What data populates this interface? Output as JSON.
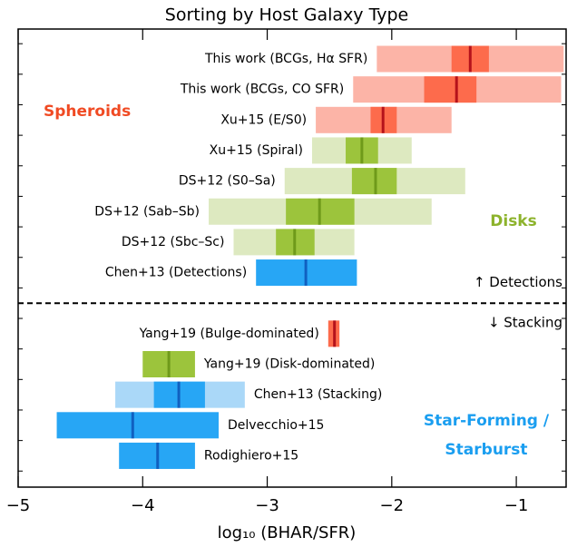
{
  "chart_data": {
    "type": "range",
    "title": "Sorting by Host Galaxy Type",
    "x_label": "log₁₀ (BHAR/SFR)",
    "xlim": [
      -5,
      -0.6
    ],
    "xticks": [
      {
        "value": -5,
        "label": "−5"
      },
      {
        "value": -4,
        "label": "−4"
      },
      {
        "value": -3,
        "label": "−3"
      },
      {
        "value": -2,
        "label": "−2"
      },
      {
        "value": -1,
        "label": "−1"
      }
    ],
    "panels": [
      {
        "annotation": "↑ Detections",
        "rows": [
          {
            "label": "This work (BCGs, Hα SFR)",
            "range": [
              -2.12,
              -0.62
            ],
            "inner": [
              -1.52,
              -1.22
            ],
            "median": -1.37,
            "light": "#fcb4a7",
            "dark": "#fd6b4c",
            "line": "#b5121b",
            "label_side": "left"
          },
          {
            "label": "This work (BCGs, CO SFR)",
            "range": [
              -2.31,
              -0.64
            ],
            "inner": [
              -1.74,
              -1.32
            ],
            "median": -1.48,
            "light": "#fcb4a7",
            "dark": "#fd6b4c",
            "line": "#b5121b",
            "label_side": "left"
          },
          {
            "label": "Xu+15 (E/S0)",
            "range": [
              -2.61,
              -1.52
            ],
            "inner": [
              -2.17,
              -1.96
            ],
            "median": -2.07,
            "light": "#fcb4a7",
            "dark": "#fd6b4c",
            "line": "#b5121b",
            "label_side": "left"
          },
          {
            "label": "Xu+15 (Spiral)",
            "range": [
              -2.64,
              -1.84
            ],
            "inner": [
              -2.37,
              -2.11
            ],
            "median": -2.24,
            "light": "#dde9c0",
            "dark": "#9cc43c",
            "line": "#6f9a1a",
            "label_side": "left"
          },
          {
            "label": "DS+12 (S0–Sa)",
            "range": [
              -2.86,
              -1.41
            ],
            "inner": [
              -2.32,
              -1.96
            ],
            "median": -2.13,
            "light": "#dde9c0",
            "dark": "#9cc43c",
            "line": "#6f9a1a",
            "label_side": "left"
          },
          {
            "label": "DS+12 (Sab–Sb)",
            "range": [
              -3.47,
              -1.68
            ],
            "inner": [
              -2.85,
              -2.3
            ],
            "median": -2.58,
            "light": "#dde9c0",
            "dark": "#9cc43c",
            "line": "#6f9a1a",
            "label_side": "left"
          },
          {
            "label": "DS+12 (Sbc–Sc)",
            "range": [
              -3.27,
              -2.3
            ],
            "inner": [
              -2.93,
              -2.62
            ],
            "median": -2.78,
            "light": "#dde9c0",
            "dark": "#9cc43c",
            "line": "#6f9a1a",
            "label_side": "left"
          },
          {
            "label": "Chen+13 (Detections)",
            "inner": [
              -3.09,
              -2.28
            ],
            "median": -2.69,
            "light": "#aad8f8",
            "dark": "#27a6f5",
            "line": "#1060c0",
            "label_side": "left"
          }
        ]
      },
      {
        "annotation": "↓ Stacking",
        "rows": [
          {
            "label": "Yang+19 (Bulge-dominated)",
            "inner": [
              -2.51,
              -2.42
            ],
            "median": -2.46,
            "light": "#fcb4a7",
            "dark": "#fd6b4c",
            "line": "#b5121b",
            "label_side": "left"
          },
          {
            "label": "Yang+19 (Disk-dominated)",
            "inner": [
              -4.0,
              -3.58
            ],
            "median": -3.79,
            "light": "#dde9c0",
            "dark": "#9cc43c",
            "line": "#6f9a1a",
            "label_side": "right"
          },
          {
            "label": "Chen+13 (Stacking)",
            "range": [
              -4.22,
              -3.18
            ],
            "inner": [
              -3.91,
              -3.5
            ],
            "median": -3.71,
            "light": "#aad8f8",
            "dark": "#27a6f5",
            "line": "#1060c0",
            "label_side": "right"
          },
          {
            "label": "Delvecchio+15",
            "inner": [
              -4.69,
              -3.39
            ],
            "median": -4.08,
            "light": "#aad8f8",
            "dark": "#27a6f5",
            "line": "#1060c0",
            "label_side": "right"
          },
          {
            "label": "Rodighiero+15",
            "inner": [
              -4.19,
              -3.58
            ],
            "median": -3.88,
            "light": "#aad8f8",
            "dark": "#27a6f5",
            "line": "#1060c0",
            "label_side": "right"
          }
        ]
      }
    ],
    "annotations": [
      {
        "text": "Spheroids",
        "color": "#f04a23"
      },
      {
        "text": "Disks",
        "color": "#8db32c"
      },
      {
        "text": "Star-Forming /",
        "color": "#1a9ef0"
      },
      {
        "text": "Starburst",
        "color": "#1a9ef0"
      }
    ]
  }
}
